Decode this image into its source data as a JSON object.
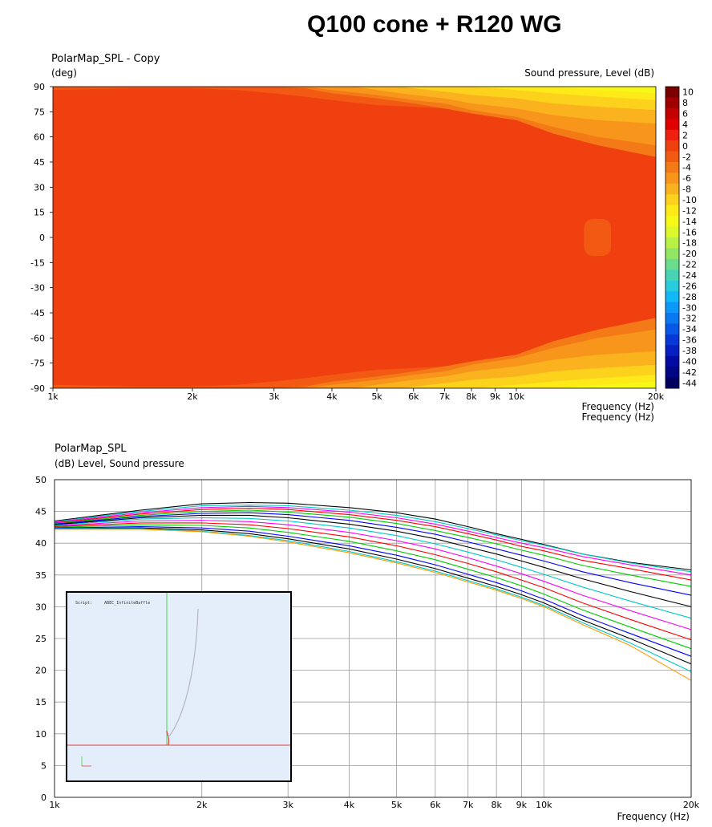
{
  "page": {
    "title": "Q100 cone + R120 WG"
  },
  "chart_data": [
    {
      "type": "heatmap",
      "title": "PolarMap_SPL - Copy",
      "ylabel": "(deg)",
      "xlabel": "Frequency (Hz)",
      "xlabel_echo": "Frequency (Hz)",
      "colorbar_label": "Sound pressure, Level (dB)",
      "x_scale": "log",
      "xlim": [
        1000,
        20000
      ],
      "ylim": [
        -90,
        90
      ],
      "x_ticks": [
        1000,
        2000,
        3000,
        4000,
        5000,
        6000,
        7000,
        8000,
        9000,
        10000,
        20000
      ],
      "x_tick_labels": [
        "1k",
        "2k",
        "3k",
        "4k",
        "5k",
        "6k",
        "7k",
        "8k",
        "9k",
        "10k",
        "20k"
      ],
      "y_ticks": [
        90,
        75,
        60,
        45,
        30,
        15,
        0,
        -15,
        -30,
        -45,
        -60,
        -75,
        -90
      ],
      "colorbar_ticks": [
        10,
        8,
        6,
        4,
        2,
        0,
        -2,
        -4,
        -6,
        -8,
        -10,
        -12,
        -14,
        -16,
        -18,
        -20,
        -22,
        -24,
        -26,
        -28,
        -30,
        -32,
        -34,
        -36,
        -38,
        -40,
        -42,
        -44
      ],
      "colorbar_colors": [
        "#7a0000",
        "#a00000",
        "#c40000",
        "#e00000",
        "#f02010",
        "#f04010",
        "#f25a14",
        "#f47a18",
        "#f8961c",
        "#fab31e",
        "#fcd21c",
        "#fdea18",
        "#f6f816",
        "#dcf82c",
        "#b9f046",
        "#92e666",
        "#6adc8c",
        "#48d4b4",
        "#28ccdc",
        "#10b8f8",
        "#0c98f8",
        "#0a78f0",
        "#0858e8",
        "#0638d8",
        "#0420c0",
        "#020ca4",
        "#010684",
        "#000060"
      ],
      "contour_levels": [
        {
          "level": -2,
          "color": "#f25a14",
          "upper_angle": [
            88,
            89,
            89,
            88,
            86,
            84,
            82,
            79,
            78,
            77,
            76,
            74,
            72,
            70,
            68
          ],
          "lower_angle": [
            -88,
            -89,
            -89,
            -88,
            -86,
            -84,
            -82,
            -79,
            -78,
            -77,
            -76,
            -74,
            -72,
            -70,
            -68
          ]
        },
        {
          "level": -4,
          "color": "#f47a18",
          "upper_angle": [
            92,
            95,
            95,
            93,
            90,
            89,
            86,
            83,
            80,
            77,
            74,
            70,
            62,
            55,
            48
          ],
          "lower_angle": [
            -92,
            -95,
            -95,
            -93,
            -90,
            -89,
            -86,
            -83,
            -80,
            -77,
            -74,
            -70,
            -62,
            -55,
            -48
          ]
        },
        {
          "level": -6,
          "color": "#f8961c",
          "upper_angle": [
            95,
            96,
            95,
            94,
            92,
            90,
            88,
            85,
            82,
            80,
            76,
            72,
            66,
            60,
            55
          ],
          "lower_angle": [
            -95,
            -96,
            -95,
            -94,
            -92,
            -90,
            -88,
            -85,
            -82,
            -80,
            -76,
            -72,
            -66,
            -60,
            -55
          ]
        },
        {
          "level": -8,
          "color": "#fab31e",
          "upper_angle": [
            96,
            98,
            98,
            97,
            96,
            94,
            92,
            88,
            85,
            83,
            80,
            77,
            73,
            70,
            68
          ],
          "lower_angle": [
            -96,
            -98,
            -98,
            -97,
            -96,
            -94,
            -92,
            -88,
            -85,
            -83,
            -80,
            -77,
            -73,
            -70,
            -68
          ]
        },
        {
          "level": -10,
          "color": "#fcd21c",
          "upper_angle": [
            97,
            99,
            99,
            99,
            98,
            97,
            95,
            92,
            89,
            87,
            85,
            83,
            80,
            78,
            76
          ],
          "lower_angle": [
            -97,
            -99,
            -99,
            -99,
            -98,
            -97,
            -95,
            -92,
            -89,
            -87,
            -85,
            -83,
            -80,
            -78,
            -76
          ]
        },
        {
          "level": -12,
          "color": "#fdea18",
          "upper_angle": [
            98,
            100,
            100,
            100,
            100,
            99,
            99,
            97,
            94,
            92,
            90,
            88,
            86,
            84,
            82
          ],
          "lower_angle": [
            -98,
            -100,
            -100,
            -100,
            -100,
            -99,
            -99,
            -97,
            -94,
            -92,
            -90,
            -88,
            -86,
            -84,
            -82
          ]
        },
        {
          "level": -14,
          "color": "#f6f816",
          "upper_angle": [
            99,
            100,
            100,
            100,
            100,
            100,
            100,
            100,
            98,
            96,
            94,
            92,
            90,
            88,
            86
          ],
          "lower_angle": [
            -99,
            -100,
            -100,
            -100,
            -100,
            -100,
            -100,
            -100,
            -98,
            -96,
            -94,
            -92,
            -90,
            -88,
            -86
          ]
        }
      ],
      "contour_x": [
        1000,
        1500,
        2000,
        2500,
        3000,
        3500,
        4000,
        5000,
        6000,
        7000,
        8000,
        10000,
        12000,
        15000,
        20000
      ],
      "hotspots": [
        {
          "level": 0,
          "color": "#f04010",
          "freq_range": [
            12800,
            20000
          ],
          "angle_range": [
            -28,
            26
          ]
        },
        {
          "level": 0,
          "color": "#f04010",
          "freq_range": [
            9200,
            10000
          ],
          "angle_range": [
            -5,
            5
          ]
        },
        {
          "level": -2,
          "color": "#f25a14",
          "freq_range": [
            14000,
            16000
          ],
          "angle_range": [
            -11,
            11
          ]
        }
      ]
    },
    {
      "type": "line",
      "title": "PolarMap_SPL",
      "ylabel": "(dB) Level, Sound pressure",
      "xlabel": "Frequency (Hz)",
      "x_scale": "log",
      "xlim": [
        1000,
        20000
      ],
      "ylim": [
        0,
        50
      ],
      "x_ticks": [
        1000,
        2000,
        3000,
        4000,
        5000,
        6000,
        7000,
        8000,
        9000,
        10000,
        20000
      ],
      "x_tick_labels": [
        "1k",
        "2k",
        "3k",
        "4k",
        "5k",
        "6k",
        "7k",
        "8k",
        "9k",
        "10k",
        "20k"
      ],
      "y_ticks": [
        0,
        5,
        10,
        15,
        20,
        25,
        30,
        35,
        40,
        45,
        50
      ],
      "grid": true,
      "x": [
        1000,
        1500,
        2000,
        2500,
        3000,
        4000,
        5000,
        6000,
        7000,
        8000,
        9000,
        10000,
        12000,
        15000,
        20000
      ],
      "series": [
        {
          "color": "#000000",
          "values": [
            43.5,
            45.2,
            46.2,
            46.4,
            46.3,
            45.6,
            44.8,
            43.8,
            42.6,
            41.5,
            40.6,
            39.8,
            38.3,
            37.0,
            35.8
          ]
        },
        {
          "color": "#00c8c8",
          "values": [
            43.4,
            45.0,
            45.9,
            46.0,
            45.9,
            45.2,
            44.4,
            43.4,
            42.3,
            41.3,
            40.4,
            39.7,
            38.3,
            36.9,
            35.5
          ]
        },
        {
          "color": "#ff00ff",
          "values": [
            43.3,
            44.8,
            45.6,
            45.8,
            45.6,
            44.9,
            44.0,
            43.0,
            41.9,
            40.9,
            40.0,
            39.3,
            37.9,
            36.6,
            35.0
          ]
        },
        {
          "color": "#ff0000",
          "values": [
            43.2,
            44.6,
            45.3,
            45.5,
            45.3,
            44.5,
            43.6,
            42.6,
            41.5,
            40.5,
            39.5,
            38.8,
            37.3,
            36.0,
            34.2
          ]
        },
        {
          "color": "#00cc00",
          "values": [
            43.1,
            44.4,
            45.0,
            45.2,
            44.9,
            44.1,
            43.1,
            42.0,
            40.9,
            39.9,
            38.9,
            38.1,
            36.5,
            35.0,
            33.2
          ]
        },
        {
          "color": "#0000ff",
          "values": [
            43.0,
            44.2,
            44.7,
            44.8,
            44.5,
            43.6,
            42.5,
            41.4,
            40.2,
            39.1,
            38.1,
            37.2,
            35.5,
            33.8,
            31.8
          ]
        },
        {
          "color": "#000000",
          "values": [
            42.9,
            44.0,
            44.4,
            44.4,
            44.0,
            43.0,
            41.9,
            40.7,
            39.4,
            38.3,
            37.2,
            36.2,
            34.4,
            32.4,
            30.0
          ]
        },
        {
          "color": "#00c8c8",
          "values": [
            42.8,
            43.8,
            44.0,
            43.9,
            43.5,
            42.4,
            41.2,
            39.9,
            38.6,
            37.4,
            36.2,
            35.1,
            33.1,
            30.9,
            28.2
          ]
        },
        {
          "color": "#ff00ff",
          "values": [
            42.7,
            43.5,
            43.6,
            43.4,
            42.9,
            41.7,
            40.4,
            39.1,
            37.7,
            36.4,
            35.2,
            34.0,
            31.8,
            29.4,
            26.4
          ]
        },
        {
          "color": "#ff0000",
          "values": [
            42.6,
            43.2,
            43.2,
            42.9,
            42.3,
            41.0,
            39.6,
            38.2,
            36.8,
            35.5,
            34.2,
            33.0,
            30.6,
            28.0,
            24.8
          ]
        },
        {
          "color": "#00cc00",
          "values": [
            42.5,
            42.9,
            42.8,
            42.4,
            41.7,
            40.3,
            38.8,
            37.4,
            35.9,
            34.6,
            33.3,
            32.0,
            29.5,
            26.8,
            23.4
          ]
        },
        {
          "color": "#0000ff",
          "values": [
            42.4,
            42.6,
            42.4,
            41.9,
            41.1,
            39.6,
            38.1,
            36.6,
            35.1,
            33.8,
            32.5,
            31.2,
            28.6,
            25.8,
            22.2
          ]
        },
        {
          "color": "#000000",
          "values": [
            42.3,
            42.4,
            42.1,
            41.5,
            40.7,
            39.1,
            37.5,
            36.0,
            34.5,
            33.2,
            31.9,
            30.6,
            27.9,
            25.0,
            21.0
          ]
        },
        {
          "color": "#00c8c8",
          "values": [
            42.3,
            42.3,
            41.9,
            41.2,
            40.4,
            38.7,
            37.1,
            35.6,
            34.1,
            32.8,
            31.5,
            30.2,
            27.5,
            24.3,
            19.8
          ]
        },
        {
          "color": "#ff9900",
          "values": [
            42.2,
            42.2,
            41.8,
            41.1,
            40.2,
            38.5,
            36.9,
            35.4,
            33.9,
            32.6,
            31.3,
            30.0,
            27.2,
            23.9,
            18.4
          ]
        }
      ]
    }
  ]
}
